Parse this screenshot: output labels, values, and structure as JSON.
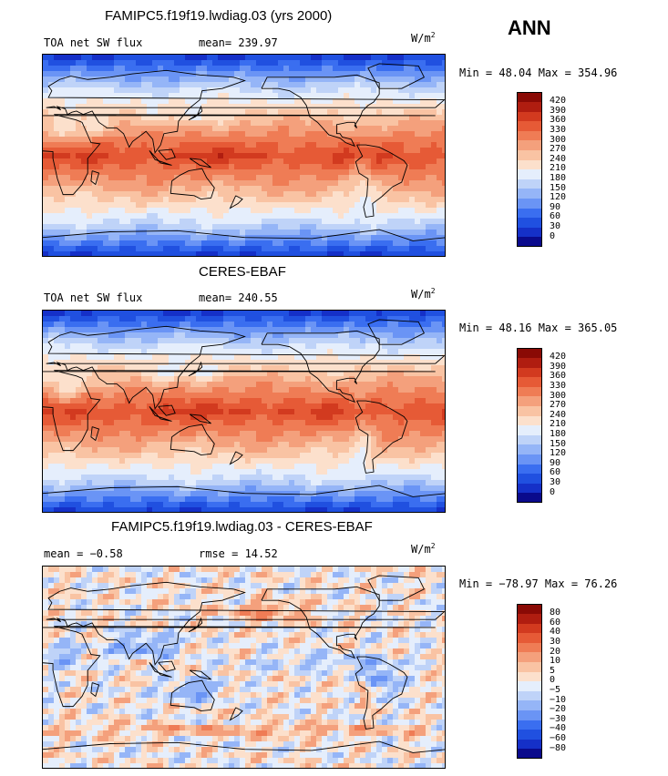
{
  "season": "ANN",
  "panels": [
    {
      "title": "FAMIPC5.f19f19.lwdiag.03 (yrs 2000)",
      "left_label": "TOA net SW flux",
      "stat_label": "mean= 239.97",
      "units_base": "W/m",
      "units_exp": "2",
      "minmax": "Min =  48.04 Max = 354.96",
      "field": "model",
      "colorbar": {
        "colors": [
          "#0a0a8c",
          "#1530c8",
          "#2050e0",
          "#3a6ef0",
          "#6a94f5",
          "#95b5f7",
          "#bfd3f8",
          "#e5eefc",
          "#fce0cc",
          "#f9c3a3",
          "#f4a07c",
          "#ef7c55",
          "#e65a36",
          "#d23a1f",
          "#b01d10",
          "#8a0a05"
        ],
        "labels": [
          "0",
          "30",
          "60",
          "90",
          "120",
          "150",
          "180",
          "210",
          "240",
          "270",
          "300",
          "330",
          "360",
          "390",
          "420"
        ]
      }
    },
    {
      "title": "CERES-EBAF",
      "left_label": "TOA net SW flux",
      "stat_label": "mean= 240.55",
      "units_base": "W/m",
      "units_exp": "2",
      "minmax": "Min =  48.16 Max = 365.05",
      "field": "obs",
      "colorbar": {
        "colors": [
          "#0a0a8c",
          "#1530c8",
          "#2050e0",
          "#3a6ef0",
          "#6a94f5",
          "#95b5f7",
          "#bfd3f8",
          "#e5eefc",
          "#fce0cc",
          "#f9c3a3",
          "#f4a07c",
          "#ef7c55",
          "#e65a36",
          "#d23a1f",
          "#b01d10",
          "#8a0a05"
        ],
        "labels": [
          "0",
          "30",
          "60",
          "90",
          "120",
          "150",
          "180",
          "210",
          "240",
          "270",
          "300",
          "330",
          "360",
          "390",
          "420"
        ]
      }
    },
    {
      "title": "FAMIPC5.f19f19.lwdiag.03 - CERES-EBAF",
      "left_label": "mean =  −0.58",
      "stat_label": "rmse =  14.52",
      "units_base": "W/m",
      "units_exp": "2",
      "minmax": "Min = −78.97 Max =  76.26",
      "field": "diff",
      "colorbar": {
        "colors": [
          "#0a0a8c",
          "#1530c8",
          "#2050e0",
          "#3a6ef0",
          "#6a94f5",
          "#95b5f7",
          "#bfd3f8",
          "#e5eefc",
          "#fce0cc",
          "#f9c3a3",
          "#f4a07c",
          "#ef7c55",
          "#e65a36",
          "#d23a1f",
          "#b01d10",
          "#8a0a05"
        ],
        "labels": [
          "−80",
          "−60",
          "−40",
          "−30",
          "−20",
          "−10",
          "−5",
          "0",
          "5",
          "10",
          "20",
          "30",
          "40",
          "60",
          "80"
        ]
      }
    }
  ]
}
